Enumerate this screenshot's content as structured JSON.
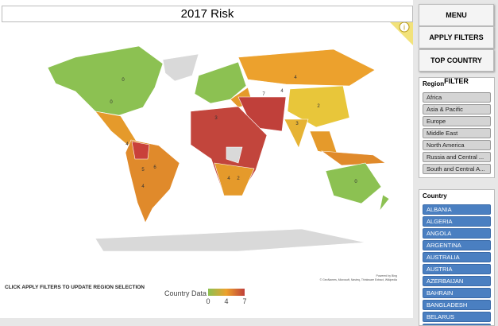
{
  "header": {
    "title": "2017 Risk"
  },
  "buttons": [
    "MENU",
    "APPLY FILTERS",
    "TOP COUNTRY FILTER"
  ],
  "region_slicer": {
    "title": "Region",
    "items": [
      "Africa",
      "Asia & Pacific",
      "Europe",
      "Middle East",
      "North America",
      "Russia and Central ...",
      "South and Central A..."
    ]
  },
  "country_slicer": {
    "title": "Country",
    "items": [
      "ALBANIA",
      "ALGERIA",
      "ANGOLA",
      "ARGENTINA",
      "AUSTRALIA",
      "AUSTRIA",
      "AZERBAIJAN",
      "BAHRAIN",
      "BANGLADESH",
      "BELARUS",
      "BELGIUM"
    ]
  },
  "map": {
    "labels": [
      "0",
      "0",
      "4",
      "2",
      "3",
      "4",
      "5",
      "4",
      "6",
      "4",
      "2",
      "0",
      "4",
      "7",
      "3"
    ],
    "credit_1": "Powered by Bing",
    "credit_2": "© GeoNames, Microsoft, Navteq, Thinkware Extract, Wikipedia"
  },
  "legend": {
    "title": "Country Data",
    "scale": [
      "0",
      "4",
      "7"
    ]
  },
  "footer": {
    "note": "CLICK APPLY FILTERS TO UPDATE REGION SELECTION"
  }
}
